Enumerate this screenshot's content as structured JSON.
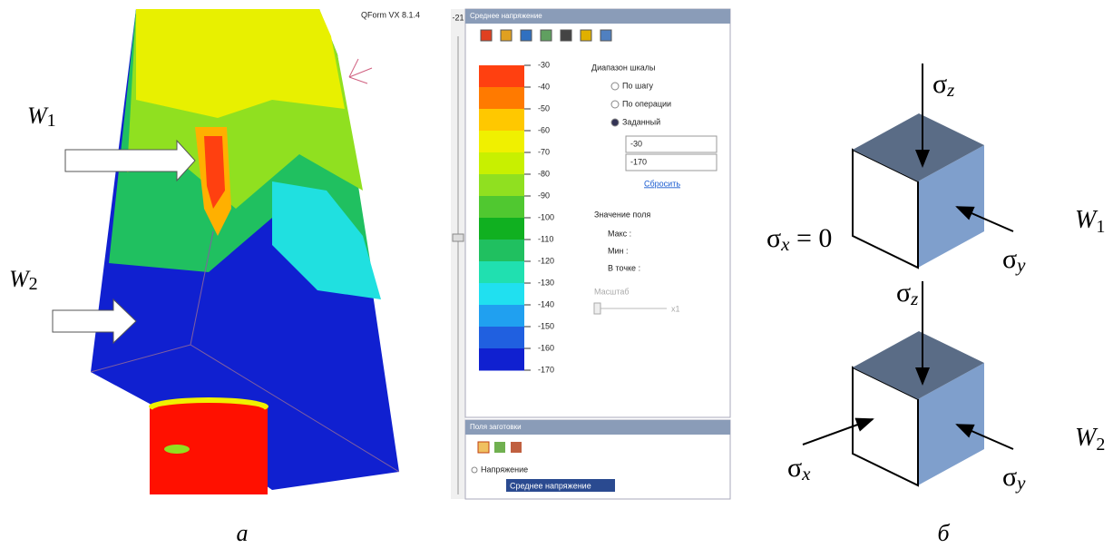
{
  "panel_a": {
    "w1": {
      "letter": "W",
      "sub": "1"
    },
    "w2": {
      "letter": "W",
      "sub": "2"
    },
    "app_title": "QForm VX 8.1.4",
    "slider_value": "-21",
    "scale_panel": {
      "title": "Среднее напряжение",
      "legend": [
        "-30",
        "-40",
        "-50",
        "-60",
        "-70",
        "-80",
        "-90",
        "-100",
        "-110",
        "-120",
        "-130",
        "-140",
        "-150",
        "-160",
        "-170"
      ],
      "range_title": "Диапазон шкалы",
      "options": [
        "По шагу",
        "По операции",
        "Заданный"
      ],
      "inputs": [
        "-30",
        "-170"
      ],
      "reset": "Сбросить",
      "field_title": "Значение поля",
      "field_rows": [
        "Макс :",
        "Мин :",
        "В точке :"
      ],
      "scale_label": "Масштаб",
      "scale_value": "x1"
    },
    "fields_panel": {
      "title": "Поля заготовки",
      "tree": [
        "Напряжение",
        "Среднее напряжение"
      ]
    },
    "caption": "а"
  },
  "panel_b": {
    "top": {
      "sz": {
        "symbol": "σ",
        "sub": "z"
      },
      "sx": {
        "symbol": "σ",
        "sub": "x",
        "suffix": " = 0"
      },
      "sy": {
        "symbol": "σ",
        "sub": "y"
      },
      "w": {
        "letter": "W",
        "sub": "1"
      }
    },
    "bottom": {
      "sz": {
        "symbol": "σ",
        "sub": "z"
      },
      "sx": {
        "symbol": "σ",
        "sub": "x"
      },
      "sy": {
        "symbol": "σ",
        "sub": "y"
      },
      "w": {
        "letter": "W",
        "sub": "2"
      }
    },
    "caption": "б"
  }
}
